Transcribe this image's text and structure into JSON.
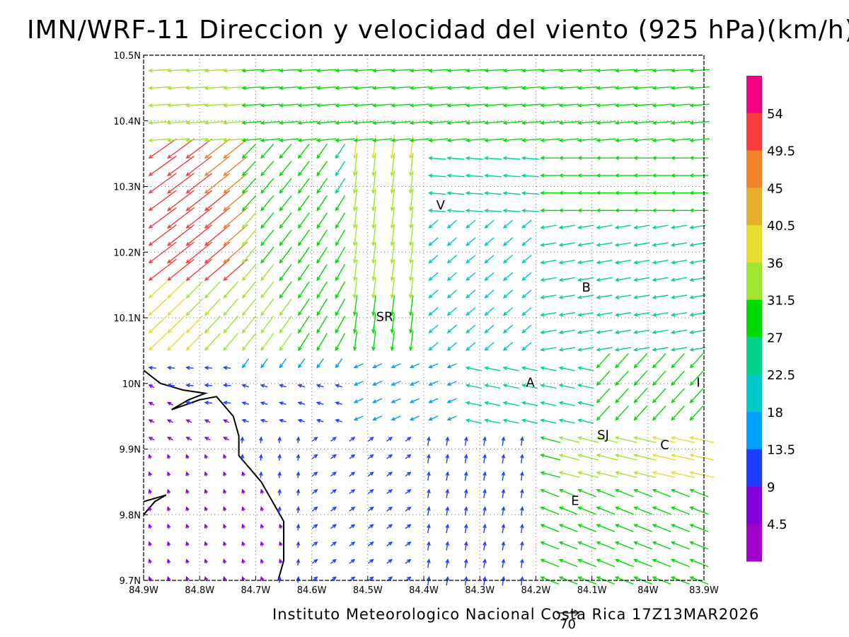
{
  "title": "IMN/WRF-11 Direccion y velocidad del viento (925 hPa)(km/h)",
  "footer": "Instituto Meteorologico Nacional Costa Rica 17Z13MAR2026",
  "reference_vector": {
    "label": "70",
    "value": 70
  },
  "axes": {
    "lon_min": -84.9,
    "lon_max": -83.9,
    "lat_min": 9.7,
    "lat_max": 10.5,
    "x_ticks": [
      "84.9W",
      "84.8W",
      "84.7W",
      "84.6W",
      "84.5W",
      "84.4W",
      "84.3W",
      "84.2W",
      "84.1W",
      "84W",
      "83.9W"
    ],
    "y_ticks": [
      "9.7N",
      "9.8N",
      "9.9N",
      "10N",
      "10.1N",
      "10.2N",
      "10.3N",
      "10.4N",
      "10.5N"
    ],
    "grid": true
  },
  "colorbar": {
    "labels": [
      "4.5",
      "9",
      "13.5",
      "18",
      "22.5",
      "27",
      "31.5",
      "36",
      "40.5",
      "45",
      "49.5",
      "54"
    ],
    "colors": [
      "#a000c8",
      "#8200dc",
      "#1e3cff",
      "#00a0ff",
      "#00c8c8",
      "#00d28c",
      "#00dc00",
      "#a0e632",
      "#e6dc32",
      "#e6af2d",
      "#f08228",
      "#fa3c3c",
      "#f00082"
    ]
  },
  "towns": [
    {
      "name": "V",
      "lon": -84.37,
      "lat": 10.265
    },
    {
      "name": "B",
      "lon": -84.11,
      "lat": 10.14
    },
    {
      "name": "SR",
      "lon": -84.47,
      "lat": 10.095
    },
    {
      "name": "A",
      "lon": -84.21,
      "lat": 9.995
    },
    {
      "name": "I",
      "lon": -83.91,
      "lat": 9.995
    },
    {
      "name": "SJ",
      "lon": -84.08,
      "lat": 9.915
    },
    {
      "name": "C",
      "lon": -83.97,
      "lat": 9.9
    },
    {
      "name": "E",
      "lon": -84.13,
      "lat": 9.815
    }
  ],
  "coastline": [
    [
      -84.9,
      10.02
    ],
    [
      -84.87,
      10.0
    ],
    [
      -84.83,
      9.99
    ],
    [
      -84.79,
      9.985
    ],
    [
      -84.82,
      9.975
    ],
    [
      -84.85,
      9.96
    ],
    [
      -84.8,
      9.975
    ],
    [
      -84.77,
      9.98
    ],
    [
      -84.74,
      9.95
    ],
    [
      -84.73,
      9.92
    ],
    [
      -84.73,
      9.89
    ],
    [
      -84.71,
      9.87
    ],
    [
      -84.69,
      9.85
    ],
    [
      -84.67,
      9.82
    ],
    [
      -84.65,
      9.79
    ],
    [
      -84.65,
      9.76
    ],
    [
      -84.65,
      9.73
    ],
    [
      -84.66,
      9.7
    ]
  ],
  "coastline_b": [
    [
      -84.9,
      9.8
    ],
    [
      -84.88,
      9.82
    ],
    [
      -84.86,
      9.83
    ],
    [
      -84.9,
      9.82
    ]
  ]
}
